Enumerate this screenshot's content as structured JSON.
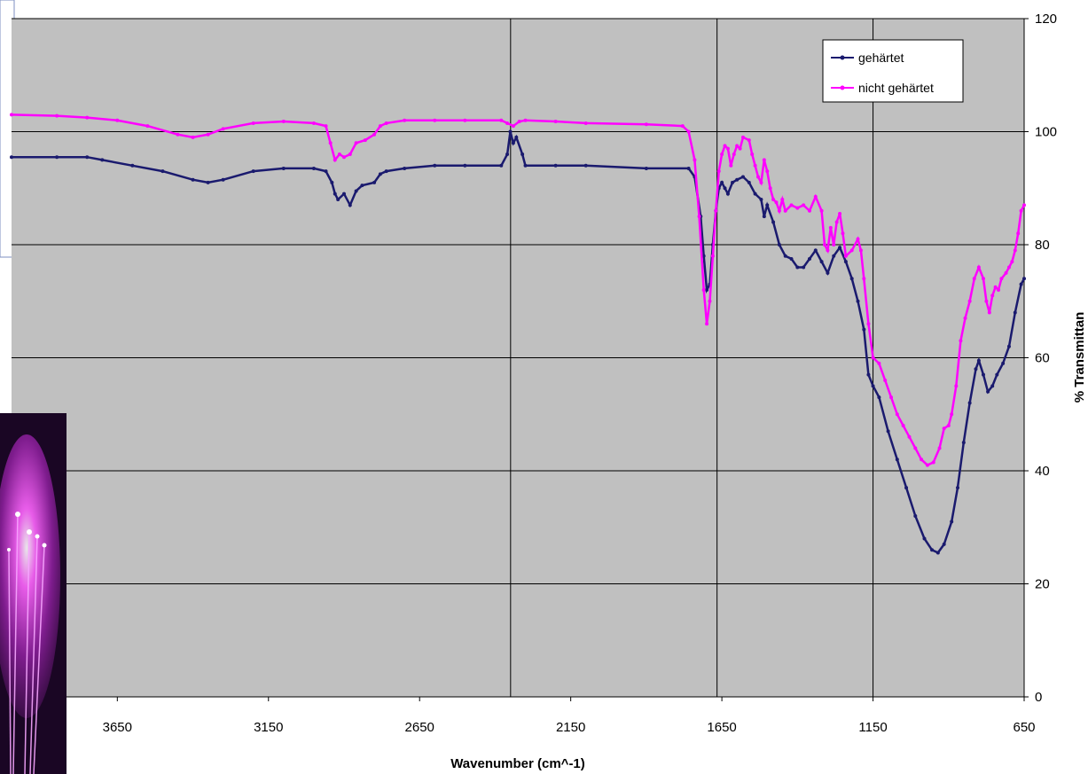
{
  "chart_data": {
    "type": "line",
    "title": "",
    "xlabel": "Wavenumber (cm^-1)",
    "ylabel": "% Transmittan",
    "xlim": [
      4000,
      650
    ],
    "ylim": [
      0,
      120
    ],
    "x_reversed": true,
    "x_ticks": [
      3650,
      3150,
      2650,
      2150,
      1650,
      1150,
      650
    ],
    "y_ticks": [
      0,
      20,
      40,
      60,
      80,
      100,
      120
    ],
    "y_axis_side": "right",
    "grid": true,
    "grid_vertical_at": [
      2349,
      1666,
      1150
    ],
    "legend_position": "top-right",
    "plot_background": "#c0c0c0",
    "series": [
      {
        "name": "gehärtet",
        "color": "#1a1a6e",
        "points": [
          [
            4000,
            95.5
          ],
          [
            3850,
            95.5
          ],
          [
            3750,
            95.5
          ],
          [
            3700,
            95.0
          ],
          [
            3600,
            94.0
          ],
          [
            3500,
            93.0
          ],
          [
            3400,
            91.5
          ],
          [
            3350,
            91.0
          ],
          [
            3300,
            91.5
          ],
          [
            3200,
            93.0
          ],
          [
            3100,
            93.5
          ],
          [
            3000,
            93.5
          ],
          [
            2960,
            93.0
          ],
          [
            2940,
            91.0
          ],
          [
            2930,
            89.0
          ],
          [
            2920,
            88.0
          ],
          [
            2900,
            89.0
          ],
          [
            2880,
            87.0
          ],
          [
            2860,
            89.5
          ],
          [
            2840,
            90.5
          ],
          [
            2800,
            91.0
          ],
          [
            2780,
            92.5
          ],
          [
            2760,
            93.0
          ],
          [
            2700,
            93.5
          ],
          [
            2600,
            94.0
          ],
          [
            2500,
            94.0
          ],
          [
            2380,
            94.0
          ],
          [
            2360,
            96.0
          ],
          [
            2350,
            100.0
          ],
          [
            2340,
            98.0
          ],
          [
            2330,
            99.0
          ],
          [
            2310,
            96.0
          ],
          [
            2300,
            94.0
          ],
          [
            2200,
            94.0
          ],
          [
            2100,
            94.0
          ],
          [
            1900,
            93.5
          ],
          [
            1760,
            93.5
          ],
          [
            1740,
            92.0
          ],
          [
            1720,
            85.0
          ],
          [
            1710,
            78.0
          ],
          [
            1700,
            72.0
          ],
          [
            1690,
            73.0
          ],
          [
            1680,
            80.0
          ],
          [
            1670,
            86.0
          ],
          [
            1660,
            90.0
          ],
          [
            1650,
            91.0
          ],
          [
            1640,
            90.0
          ],
          [
            1630,
            89.0
          ],
          [
            1615,
            91.0
          ],
          [
            1600,
            91.5
          ],
          [
            1580,
            92.0
          ],
          [
            1560,
            91.0
          ],
          [
            1540,
            89.0
          ],
          [
            1520,
            88.0
          ],
          [
            1510,
            85.0
          ],
          [
            1500,
            87.0
          ],
          [
            1480,
            84.0
          ],
          [
            1460,
            80.0
          ],
          [
            1440,
            78.0
          ],
          [
            1420,
            77.5
          ],
          [
            1400,
            76.0
          ],
          [
            1380,
            76.0
          ],
          [
            1360,
            77.5
          ],
          [
            1340,
            79.0
          ],
          [
            1320,
            77.0
          ],
          [
            1300,
            75.0
          ],
          [
            1280,
            78.0
          ],
          [
            1260,
            79.5
          ],
          [
            1240,
            77.0
          ],
          [
            1220,
            74.0
          ],
          [
            1200,
            70.0
          ],
          [
            1180,
            65.0
          ],
          [
            1165,
            57.0
          ],
          [
            1150,
            55.0
          ],
          [
            1130,
            53.0
          ],
          [
            1100,
            47.0
          ],
          [
            1070,
            42.0
          ],
          [
            1040,
            37.0
          ],
          [
            1010,
            32.0
          ],
          [
            980,
            28.0
          ],
          [
            955,
            26.0
          ],
          [
            935,
            25.5
          ],
          [
            915,
            27.0
          ],
          [
            890,
            31.0
          ],
          [
            870,
            37.0
          ],
          [
            850,
            45.0
          ],
          [
            830,
            52.0
          ],
          [
            810,
            58.0
          ],
          [
            800,
            59.5
          ],
          [
            785,
            57.0
          ],
          [
            770,
            54.0
          ],
          [
            755,
            55.0
          ],
          [
            740,
            57.0
          ],
          [
            720,
            59.0
          ],
          [
            700,
            62.0
          ],
          [
            680,
            68.0
          ],
          [
            660,
            73.0
          ],
          [
            650,
            74.0
          ]
        ]
      },
      {
        "name": "nicht gehärtet",
        "color": "#ff00ff",
        "points": [
          [
            4000,
            103.0
          ],
          [
            3850,
            102.8
          ],
          [
            3750,
            102.5
          ],
          [
            3650,
            102.0
          ],
          [
            3550,
            101.0
          ],
          [
            3450,
            99.5
          ],
          [
            3400,
            99.0
          ],
          [
            3350,
            99.5
          ],
          [
            3300,
            100.5
          ],
          [
            3200,
            101.5
          ],
          [
            3100,
            101.8
          ],
          [
            3000,
            101.5
          ],
          [
            2960,
            101.0
          ],
          [
            2945,
            98.0
          ],
          [
            2930,
            95.0
          ],
          [
            2915,
            96.0
          ],
          [
            2900,
            95.5
          ],
          [
            2880,
            96.0
          ],
          [
            2860,
            98.0
          ],
          [
            2830,
            98.5
          ],
          [
            2800,
            99.5
          ],
          [
            2780,
            101.0
          ],
          [
            2760,
            101.5
          ],
          [
            2700,
            102.0
          ],
          [
            2600,
            102.0
          ],
          [
            2500,
            102.0
          ],
          [
            2380,
            102.0
          ],
          [
            2360,
            101.5
          ],
          [
            2340,
            101.0
          ],
          [
            2320,
            101.8
          ],
          [
            2300,
            102.0
          ],
          [
            2200,
            101.8
          ],
          [
            2100,
            101.5
          ],
          [
            1900,
            101.3
          ],
          [
            1780,
            101.0
          ],
          [
            1760,
            100.0
          ],
          [
            1740,
            95.0
          ],
          [
            1725,
            85.0
          ],
          [
            1710,
            72.0
          ],
          [
            1700,
            66.0
          ],
          [
            1690,
            70.0
          ],
          [
            1680,
            78.0
          ],
          [
            1670,
            86.0
          ],
          [
            1660,
            93.0
          ],
          [
            1650,
            96.0
          ],
          [
            1640,
            97.5
          ],
          [
            1630,
            97.0
          ],
          [
            1620,
            94.0
          ],
          [
            1610,
            96.0
          ],
          [
            1600,
            97.5
          ],
          [
            1590,
            97.0
          ],
          [
            1580,
            99.0
          ],
          [
            1560,
            98.5
          ],
          [
            1550,
            96.0
          ],
          [
            1540,
            94.0
          ],
          [
            1530,
            92.0
          ],
          [
            1520,
            91.0
          ],
          [
            1510,
            95.0
          ],
          [
            1500,
            93.0
          ],
          [
            1490,
            90.0
          ],
          [
            1480,
            88.0
          ],
          [
            1470,
            87.5
          ],
          [
            1460,
            86.0
          ],
          [
            1450,
            88.0
          ],
          [
            1440,
            86.0
          ],
          [
            1420,
            87.0
          ],
          [
            1400,
            86.5
          ],
          [
            1380,
            87.0
          ],
          [
            1360,
            86.0
          ],
          [
            1340,
            88.5
          ],
          [
            1320,
            86.0
          ],
          [
            1310,
            80.0
          ],
          [
            1300,
            79.0
          ],
          [
            1290,
            83.0
          ],
          [
            1280,
            80.0
          ],
          [
            1270,
            84.0
          ],
          [
            1260,
            85.5
          ],
          [
            1250,
            82.0
          ],
          [
            1240,
            78.0
          ],
          [
            1220,
            79.0
          ],
          [
            1200,
            81.0
          ],
          [
            1190,
            79.0
          ],
          [
            1180,
            74.0
          ],
          [
            1165,
            66.0
          ],
          [
            1150,
            60.0
          ],
          [
            1130,
            59.0
          ],
          [
            1110,
            56.0
          ],
          [
            1090,
            53.0
          ],
          [
            1070,
            50.0
          ],
          [
            1050,
            48.0
          ],
          [
            1030,
            46.0
          ],
          [
            1010,
            44.0
          ],
          [
            990,
            42.0
          ],
          [
            970,
            41.0
          ],
          [
            950,
            41.5
          ],
          [
            930,
            44.0
          ],
          [
            915,
            47.5
          ],
          [
            900,
            48.0
          ],
          [
            890,
            50.0
          ],
          [
            875,
            55.0
          ],
          [
            860,
            63.0
          ],
          [
            845,
            67.0
          ],
          [
            830,
            70.0
          ],
          [
            815,
            74.0
          ],
          [
            800,
            76.0
          ],
          [
            785,
            74.0
          ],
          [
            775,
            70.0
          ],
          [
            765,
            68.0
          ],
          [
            755,
            71.0
          ],
          [
            745,
            72.5
          ],
          [
            735,
            72.0
          ],
          [
            725,
            74.0
          ],
          [
            710,
            75.0
          ],
          [
            700,
            76.0
          ],
          [
            690,
            77.0
          ],
          [
            680,
            79.0
          ],
          [
            670,
            82.0
          ],
          [
            660,
            86.0
          ],
          [
            650,
            87.0
          ]
        ]
      }
    ]
  }
}
